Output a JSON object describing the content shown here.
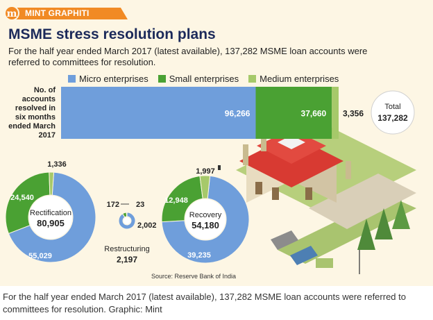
{
  "brand": {
    "logo_letter": "m",
    "name": "MINT GRAPHITI"
  },
  "header": {
    "title": "MSME stress resolution plans",
    "subtitle": "For the half year ended March 2017 (latest available), 137,282 MSME loan accounts were referred to committees for resolution."
  },
  "colors": {
    "micro": "#6f9edb",
    "small": "#4aa133",
    "medium": "#a6c96a",
    "accent": "#f18a24",
    "background": "#fdf6e4",
    "title": "#1c2a5a"
  },
  "chart_data": [
    {
      "type": "bar",
      "orientation": "horizontal-stacked",
      "title": "",
      "category_label": "No. of accounts resolved in six months ended March 2017",
      "series": [
        {
          "name": "Micro enterprises",
          "value": 96266,
          "label": "96,266"
        },
        {
          "name": "Small enterprises",
          "value": 37660,
          "label": "37,660"
        },
        {
          "name": "Medium enterprises",
          "value": 3356,
          "label": "3,356"
        }
      ],
      "total": {
        "label": "Total",
        "value": "137,282"
      }
    },
    {
      "type": "pie",
      "style": "donut",
      "center_label": "Rectification",
      "center_value": "80,905",
      "slices": [
        {
          "series": "Micro enterprises",
          "value": 55029,
          "label": "55,029"
        },
        {
          "series": "Small enterprises",
          "value": 24540,
          "label": "24,540"
        },
        {
          "series": "Medium enterprises",
          "value": 1336,
          "label": "1,336"
        }
      ]
    },
    {
      "type": "pie",
      "style": "donut",
      "center_label": "Restructuring",
      "center_value": "2,197",
      "slices": [
        {
          "series": "Micro enterprises",
          "value": 2002,
          "label": "2,002"
        },
        {
          "series": "Small enterprises",
          "value": 172,
          "label": "172"
        },
        {
          "series": "Medium enterprises",
          "value": 23,
          "label": "23"
        }
      ]
    },
    {
      "type": "pie",
      "style": "donut",
      "center_label": "Recovery",
      "center_value": "54,180",
      "slices": [
        {
          "series": "Micro enterprises",
          "value": 39235,
          "label": "39,235"
        },
        {
          "series": "Small enterprises",
          "value": 12948,
          "label": "12,948"
        },
        {
          "series": "Medium enterprises",
          "value": 1997,
          "label": "1,997"
        }
      ]
    }
  ],
  "source": "Source: Reserve Bank of India",
  "caption": "For the half year ended March 2017 (latest available), 137,282 MSME loan accounts were referred to committees for resolution. Graphic: Mint"
}
